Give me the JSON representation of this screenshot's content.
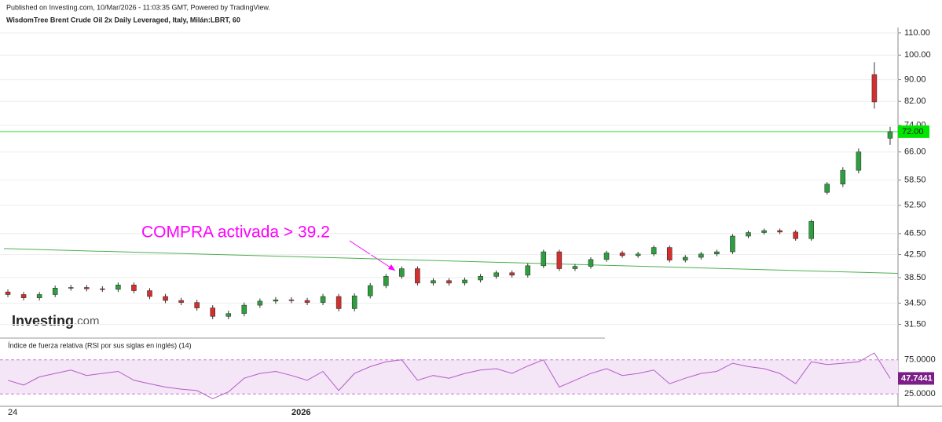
{
  "header": {
    "published": "Published on Investing.com, 10/Mar/2026 - 11:03:35 GMT, Powered by TradingView.",
    "instrument": "WisdomTree Brent Crude Oil 2x Daily Leveraged, Italy, Milán:LBRT, 60"
  },
  "logo": {
    "name": "Investing",
    "suffix": ".com"
  },
  "chart_data": [
    {
      "type": "candlestick",
      "log_scale": true,
      "grid": true,
      "categories": [
        "24",
        null,
        null,
        null,
        null,
        null,
        null,
        null,
        null,
        null,
        null,
        null,
        null,
        null,
        null,
        null,
        null,
        null,
        "2026",
        null,
        null,
        null,
        null,
        null,
        null,
        null,
        null,
        null,
        null,
        null,
        null,
        null,
        null,
        null,
        null,
        null,
        null,
        null,
        null,
        null,
        null,
        null,
        null,
        null,
        null,
        null,
        null,
        null,
        null,
        null,
        null,
        null,
        null,
        null,
        null,
        null,
        null
      ],
      "open": [
        36.2,
        35.8,
        35.3,
        35.8,
        36.8,
        36.9,
        36.7,
        36.6,
        37.3,
        36.4,
        35.5,
        34.9,
        34.6,
        33.8,
        32.6,
        33.0,
        34.2,
        34.8,
        35.0,
        34.9,
        34.6,
        35.5,
        33.7,
        35.6,
        37.2,
        38.7,
        40.0,
        37.6,
        38.0,
        37.6,
        38.1,
        38.7,
        39.3,
        38.9,
        40.5,
        43.0,
        40.0,
        40.4,
        41.6,
        42.8,
        42.3,
        42.6,
        43.8,
        41.5,
        42.0,
        42.6,
        43.0,
        46.0,
        46.7,
        47.1,
        46.8,
        45.5,
        55.5,
        57.5,
        61.0,
        92.0,
        70.0
      ],
      "high": [
        36.6,
        36.2,
        36.2,
        37.2,
        37.3,
        37.3,
        37.1,
        37.7,
        37.7,
        36.8,
        35.9,
        35.3,
        35.0,
        34.2,
        33.4,
        34.6,
        35.2,
        35.4,
        35.4,
        35.3,
        35.9,
        35.9,
        36.0,
        37.6,
        39.1,
        40.4,
        40.4,
        38.4,
        38.4,
        38.5,
        39.1,
        39.7,
        39.7,
        40.9,
        43.4,
        43.4,
        40.8,
        42.0,
        43.2,
        43.2,
        43.0,
        44.2,
        44.2,
        42.4,
        43.0,
        43.4,
        46.4,
        47.1,
        47.5,
        47.5,
        47.2,
        49.4,
        58.0,
        61.8,
        67.0,
        97.0,
        73.5
      ],
      "low": [
        35.4,
        34.9,
        34.9,
        35.4,
        36.4,
        36.3,
        36.2,
        36.2,
        36.0,
        35.1,
        34.5,
        34.2,
        33.4,
        32.2,
        32.2,
        32.6,
        33.8,
        34.4,
        34.5,
        34.2,
        34.2,
        33.3,
        33.3,
        35.2,
        36.8,
        38.3,
        37.2,
        37.2,
        37.2,
        37.2,
        37.7,
        38.3,
        38.5,
        38.5,
        40.1,
        39.6,
        39.6,
        40.0,
        41.2,
        41.9,
        41.9,
        42.2,
        41.1,
        41.1,
        41.6,
        42.2,
        42.6,
        45.6,
        46.3,
        46.4,
        45.1,
        45.1,
        55.0,
        56.8,
        60.2,
        79.5,
        68.0
      ],
      "close": [
        35.8,
        35.3,
        35.8,
        36.8,
        36.9,
        36.7,
        36.6,
        37.3,
        36.4,
        35.5,
        34.9,
        34.6,
        33.8,
        32.6,
        33.0,
        34.2,
        34.8,
        35.0,
        34.9,
        34.6,
        35.5,
        33.7,
        35.6,
        37.2,
        38.7,
        40.0,
        37.6,
        38.0,
        37.6,
        38.1,
        38.7,
        39.3,
        38.9,
        40.5,
        43.0,
        40.0,
        40.4,
        41.6,
        42.8,
        42.3,
        42.6,
        43.8,
        41.5,
        42.0,
        42.6,
        43.0,
        46.0,
        46.7,
        47.1,
        46.8,
        45.5,
        49.0,
        57.5,
        61.0,
        66.0,
        81.8,
        72.0
      ],
      "up_color": "#2e9e3e",
      "down_color": "#d32f2f",
      "ylim": [
        29.8,
        112.6
      ],
      "yticks": [
        {
          "value": 31.5,
          "label": "31.50"
        },
        {
          "value": 34.5,
          "label": "34.50"
        },
        {
          "value": 38.5,
          "label": "38.50"
        },
        {
          "value": 42.5,
          "label": "42.50"
        },
        {
          "value": 46.5,
          "label": "46.50"
        },
        {
          "value": 52.5,
          "label": "52.50"
        },
        {
          "value": 58.5,
          "label": "58.50"
        },
        {
          "value": 66,
          "label": "66.00"
        },
        {
          "value": 74,
          "label": "74.00"
        },
        {
          "value": 82,
          "label": "82.00"
        },
        {
          "value": 90,
          "label": "90.00"
        },
        {
          "value": 100,
          "label": "100.00"
        },
        {
          "value": 110,
          "label": "110.00"
        }
      ],
      "price_line": {
        "value": 72,
        "label": "72.00",
        "color": "#00e600"
      },
      "trendline": {
        "values": [
          43.6,
          39.2
        ],
        "color": "#4caf50"
      },
      "annotation": {
        "text": "COMPRA activada > 39.2",
        "color": "#ff00ff"
      }
    },
    {
      "type": "line",
      "title": "Índice de fuerza relativa (RSI por sus siglas en inglés) (14)",
      "values": [
        45,
        38,
        50,
        55,
        60,
        52,
        55,
        58,
        45,
        40,
        35,
        32,
        30,
        18,
        28,
        48,
        55,
        58,
        52,
        45,
        58,
        30,
        55,
        65,
        72,
        75,
        45,
        52,
        48,
        55,
        60,
        62,
        55,
        66,
        75,
        35,
        45,
        55,
        62,
        52,
        55,
        60,
        40,
        48,
        55,
        58,
        70,
        65,
        62,
        55,
        40,
        72,
        68,
        70,
        72,
        85,
        47.7441
      ],
      "color": "#b45cc8",
      "ylim": [
        8,
        100
      ],
      "yticks": [
        {
          "value": 25,
          "label": "25.0000"
        },
        {
          "value": 75,
          "label": "75.0000"
        }
      ]
    }
  ]
}
